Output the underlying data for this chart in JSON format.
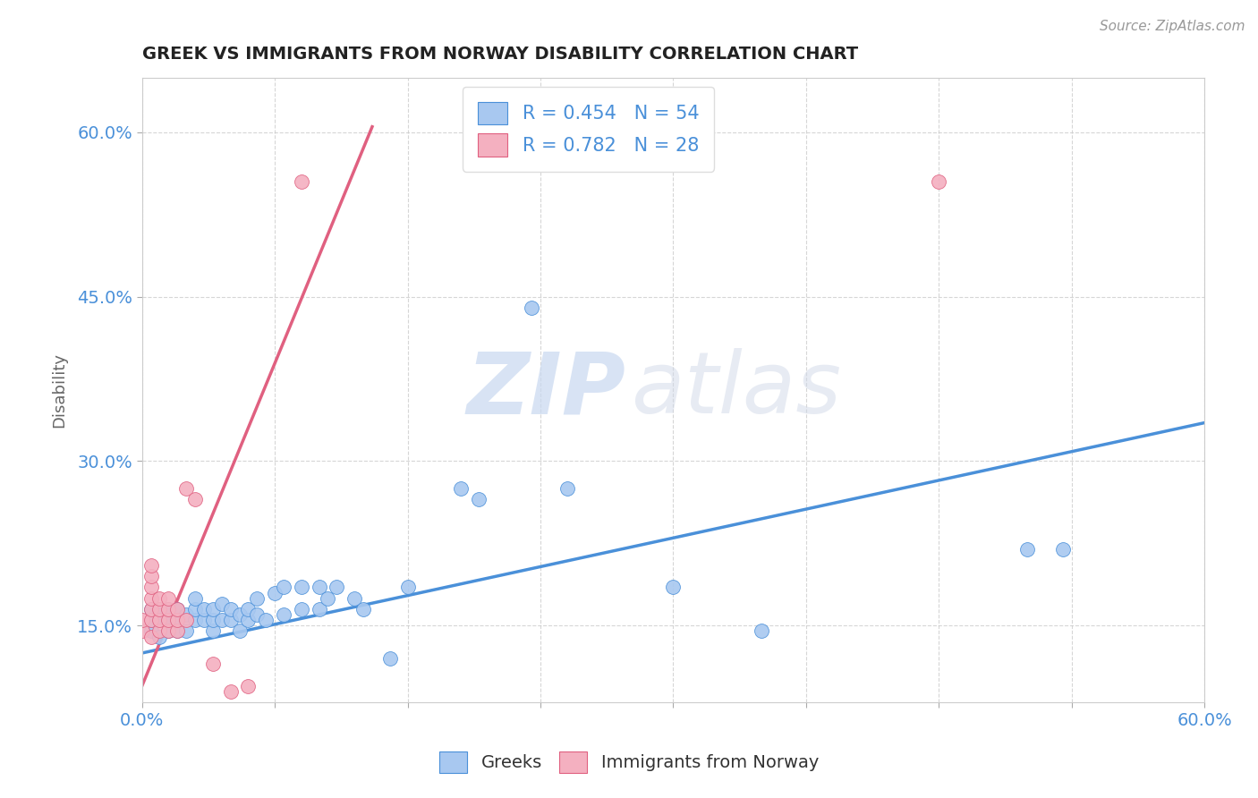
{
  "title": "GREEK VS IMMIGRANTS FROM NORWAY DISABILITY CORRELATION CHART",
  "source": "Source: ZipAtlas.com",
  "ylabel": "Disability",
  "legend_label1": "Greeks",
  "legend_label2": "Immigrants from Norway",
  "r1": 0.454,
  "n1": 54,
  "r2": 0.782,
  "n2": 28,
  "watermark_zip": "ZIP",
  "watermark_atlas": "atlas",
  "blue_color": "#A8C8F0",
  "pink_color": "#F4B0C0",
  "blue_line_color": "#4A90D9",
  "pink_line_color": "#E06080",
  "xmin": 0.0,
  "xmax": 0.6,
  "ymin": 0.08,
  "ymax": 0.65,
  "yticks": [
    0.15,
    0.3,
    0.45,
    0.6
  ],
  "xticks": [
    0.0,
    0.075,
    0.15,
    0.225,
    0.3,
    0.375,
    0.45,
    0.525,
    0.6
  ],
  "blue_line": [
    [
      0.0,
      0.125
    ],
    [
      0.6,
      0.335
    ]
  ],
  "pink_line": [
    [
      0.0,
      0.095
    ],
    [
      0.13,
      0.605
    ]
  ],
  "blue_points": [
    [
      0.005,
      0.145
    ],
    [
      0.005,
      0.155
    ],
    [
      0.005,
      0.165
    ],
    [
      0.01,
      0.14
    ],
    [
      0.01,
      0.16
    ],
    [
      0.01,
      0.155
    ],
    [
      0.015,
      0.145
    ],
    [
      0.015,
      0.155
    ],
    [
      0.015,
      0.165
    ],
    [
      0.02,
      0.145
    ],
    [
      0.02,
      0.155
    ],
    [
      0.02,
      0.165
    ],
    [
      0.025,
      0.145
    ],
    [
      0.025,
      0.16
    ],
    [
      0.03,
      0.155
    ],
    [
      0.03,
      0.165
    ],
    [
      0.03,
      0.175
    ],
    [
      0.035,
      0.155
    ],
    [
      0.035,
      0.165
    ],
    [
      0.04,
      0.145
    ],
    [
      0.04,
      0.155
    ],
    [
      0.04,
      0.165
    ],
    [
      0.045,
      0.155
    ],
    [
      0.045,
      0.17
    ],
    [
      0.05,
      0.155
    ],
    [
      0.05,
      0.165
    ],
    [
      0.055,
      0.145
    ],
    [
      0.055,
      0.16
    ],
    [
      0.06,
      0.155
    ],
    [
      0.06,
      0.165
    ],
    [
      0.065,
      0.16
    ],
    [
      0.065,
      0.175
    ],
    [
      0.07,
      0.155
    ],
    [
      0.075,
      0.18
    ],
    [
      0.08,
      0.16
    ],
    [
      0.08,
      0.185
    ],
    [
      0.09,
      0.165
    ],
    [
      0.09,
      0.185
    ],
    [
      0.1,
      0.165
    ],
    [
      0.1,
      0.185
    ],
    [
      0.105,
      0.175
    ],
    [
      0.11,
      0.185
    ],
    [
      0.12,
      0.175
    ],
    [
      0.125,
      0.165
    ],
    [
      0.14,
      0.12
    ],
    [
      0.15,
      0.185
    ],
    [
      0.18,
      0.275
    ],
    [
      0.19,
      0.265
    ],
    [
      0.22,
      0.44
    ],
    [
      0.24,
      0.275
    ],
    [
      0.3,
      0.185
    ],
    [
      0.35,
      0.145
    ],
    [
      0.5,
      0.22
    ],
    [
      0.52,
      0.22
    ]
  ],
  "pink_points": [
    [
      0.0,
      0.145
    ],
    [
      0.0,
      0.155
    ],
    [
      0.005,
      0.14
    ],
    [
      0.005,
      0.155
    ],
    [
      0.005,
      0.165
    ],
    [
      0.005,
      0.175
    ],
    [
      0.005,
      0.185
    ],
    [
      0.005,
      0.195
    ],
    [
      0.005,
      0.205
    ],
    [
      0.01,
      0.145
    ],
    [
      0.01,
      0.155
    ],
    [
      0.01,
      0.165
    ],
    [
      0.01,
      0.175
    ],
    [
      0.015,
      0.145
    ],
    [
      0.015,
      0.155
    ],
    [
      0.015,
      0.165
    ],
    [
      0.015,
      0.175
    ],
    [
      0.02,
      0.145
    ],
    [
      0.02,
      0.155
    ],
    [
      0.02,
      0.165
    ],
    [
      0.025,
      0.155
    ],
    [
      0.025,
      0.275
    ],
    [
      0.03,
      0.265
    ],
    [
      0.04,
      0.115
    ],
    [
      0.05,
      0.09
    ],
    [
      0.06,
      0.095
    ],
    [
      0.09,
      0.555
    ],
    [
      0.45,
      0.555
    ]
  ]
}
